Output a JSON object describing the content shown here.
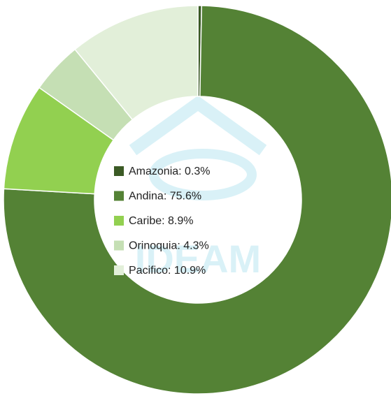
{
  "chart_data": {
    "type": "donut",
    "values": [
      0.3,
      75.6,
      8.9,
      4.3,
      10.9
    ],
    "value_labels": [
      "Amazonia: 0.3%",
      "Andina: 75.6%",
      "Caribe: 8.9%",
      "Orinoquia: 4.3%",
      "Pacifico: 10.9%"
    ],
    "colors": [
      "#3b5a25",
      "#548235",
      "#92d050",
      "#c5dfb4",
      "#e2efd9"
    ],
    "watermark": "IDEAM"
  }
}
